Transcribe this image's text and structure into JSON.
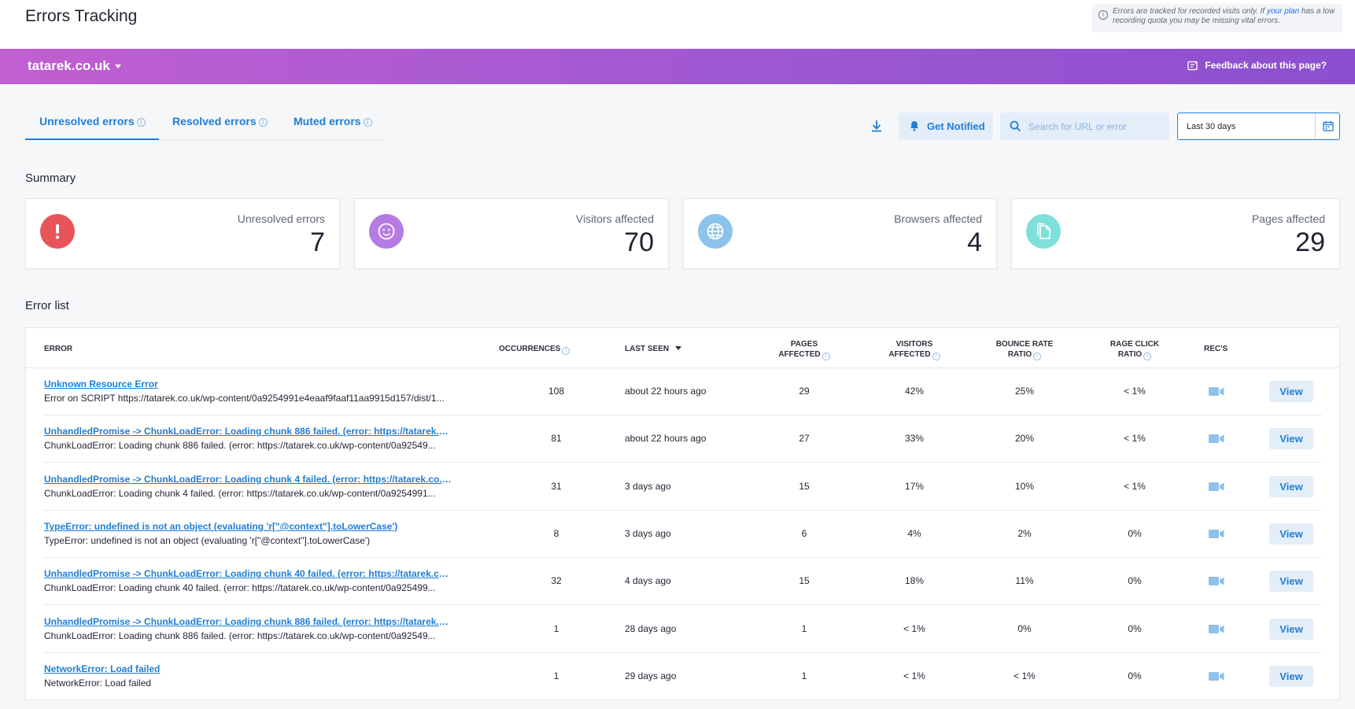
{
  "header": {
    "title": "Errors Tracking",
    "notice_pre": "Errors are tracked for recorded visits only. If ",
    "notice_link": "your plan",
    "notice_post": " has a low recording quota you may be missing vital errors."
  },
  "banner": {
    "site": "tatarek.co.uk",
    "feedback": "Feedback about this page?"
  },
  "tabs": [
    {
      "label": "Unresolved errors",
      "active": true
    },
    {
      "label": "Resolved errors",
      "active": false
    },
    {
      "label": "Muted errors",
      "active": false
    }
  ],
  "toolbar": {
    "notify_label": "Get Notified",
    "search_placeholder": "Search for URL or error",
    "date_range": "Last 30 days"
  },
  "summary": {
    "title": "Summary",
    "cards": [
      {
        "label": "Unresolved errors",
        "value": "7",
        "icon": "alert-icon",
        "color": "#e9545b"
      },
      {
        "label": "Visitors affected",
        "value": "70",
        "icon": "smiley-icon",
        "color": "#b57be3"
      },
      {
        "label": "Browsers affected",
        "value": "4",
        "icon": "globe-icon",
        "color": "#8cc3ea"
      },
      {
        "label": "Pages affected",
        "value": "29",
        "icon": "pages-icon",
        "color": "#7ee0d8"
      }
    ]
  },
  "error_list": {
    "title": "Error list",
    "columns": {
      "error": "ERROR",
      "occurrences": "OCCURRENCES",
      "last_seen": "LAST SEEN",
      "pages_1": "PAGES",
      "pages_2": "AFFECTED",
      "visitors_1": "VISITORS",
      "visitors_2": "AFFECTED",
      "bounce_1": "BOUNCE RATE",
      "bounce_2": "RATIO",
      "rage_1": "RAGE CLICK",
      "rage_2": "RATIO",
      "recs": "REC'S"
    },
    "view_label": "View",
    "rows": [
      {
        "title": "Unknown Resource Error",
        "detail": "Error on SCRIPT https://tatarek.co.uk/wp-content/0a9254991e4eaaf9faaf11aa9915d157/dist/1...",
        "occurrences": "108",
        "last_seen": "about 22 hours ago",
        "pages": "29",
        "visitors": "42%",
        "bounce": "25%",
        "rage": "< 1%"
      },
      {
        "title": "UnhandledPromise -> ChunkLoadError: Loading chunk 886 failed. (error: https://tatarek.co....",
        "detail": "ChunkLoadError: Loading chunk 886 failed. (error: https://tatarek.co.uk/wp-content/0a92549...",
        "occurrences": "81",
        "last_seen": "about 22 hours ago",
        "pages": "27",
        "visitors": "33%",
        "bounce": "20%",
        "rage": "< 1%"
      },
      {
        "title": "UnhandledPromise -> ChunkLoadError: Loading chunk 4 failed. (error: https://tatarek.co.uk...",
        "detail": "ChunkLoadError: Loading chunk 4 failed. (error: https://tatarek.co.uk/wp-content/0a9254991...",
        "occurrences": "31",
        "last_seen": "3 days ago",
        "pages": "15",
        "visitors": "17%",
        "bounce": "10%",
        "rage": "< 1%"
      },
      {
        "title": "TypeError: undefined is not an object (evaluating 'r[\"@context\"].toLowerCase')",
        "detail": "TypeError: undefined is not an object (evaluating 'r[\"@context\"].toLowerCase')",
        "occurrences": "8",
        "last_seen": "3 days ago",
        "pages": "6",
        "visitors": "4%",
        "bounce": "2%",
        "rage": "0%"
      },
      {
        "title": "UnhandledPromise -> ChunkLoadError: Loading chunk 40 failed. (error: https://tatarek.co.u...",
        "detail": "ChunkLoadError: Loading chunk 40 failed. (error: https://tatarek.co.uk/wp-content/0a925499...",
        "occurrences": "32",
        "last_seen": "4 days ago",
        "pages": "15",
        "visitors": "18%",
        "bounce": "11%",
        "rage": "0%"
      },
      {
        "title": "UnhandledPromise -> ChunkLoadError: Loading chunk 886 failed. (error: https://tatarek.co....",
        "detail": "ChunkLoadError: Loading chunk 886 failed. (error: https://tatarek.co.uk/wp-content/0a92549...",
        "occurrences": "1",
        "last_seen": "28 days ago",
        "pages": "1",
        "visitors": "< 1%",
        "bounce": "0%",
        "rage": "0%"
      },
      {
        "title": "NetworkError: Load failed",
        "detail": "NetworkError: Load failed",
        "occurrences": "1",
        "last_seen": "29 days ago",
        "pages": "1",
        "visitors": "< 1%",
        "bounce": "< 1%",
        "rage": "0%"
      }
    ]
  }
}
